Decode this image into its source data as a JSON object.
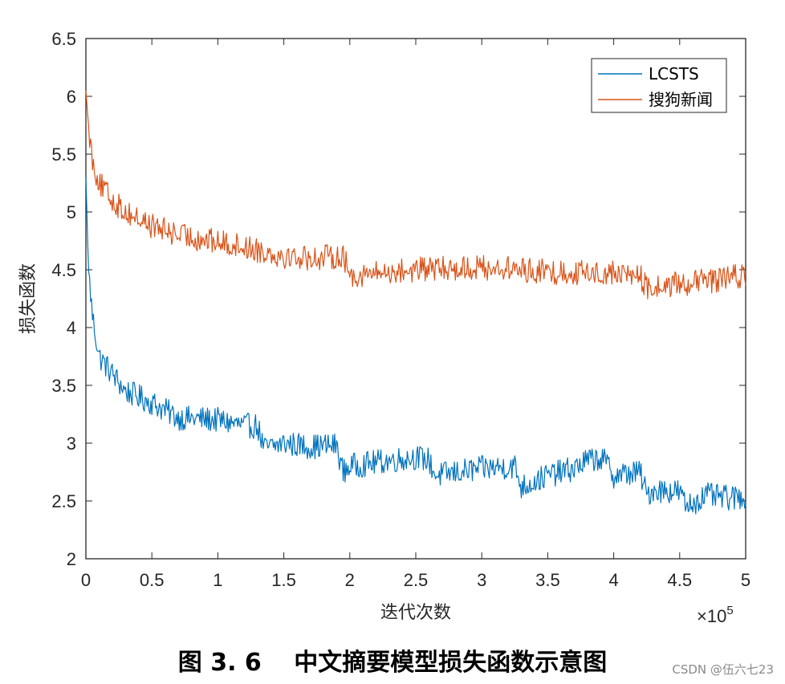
{
  "chart_data": {
    "type": "line",
    "xlabel": "迭代次数",
    "ylabel": "损失函数",
    "x_exponent_label": "×10",
    "x_exponent_power": "5",
    "xlim": [
      0,
      5
    ],
    "ylim": [
      2,
      6.5
    ],
    "xticks": [
      "0",
      "0.5",
      "1",
      "1.5",
      "2",
      "2.5",
      "3",
      "3.5",
      "4",
      "4.5",
      "5"
    ],
    "yticks": [
      "2",
      "2.5",
      "3",
      "3.5",
      "4",
      "4.5",
      "5",
      "5.5",
      "6",
      "6.5"
    ],
    "legend_position": "top-right",
    "grid": false,
    "series": [
      {
        "name": "LCSTS",
        "color": "#0072BD",
        "x": [
          0,
          0.02,
          0.05,
          0.1,
          0.2,
          0.3,
          0.5,
          0.7,
          1.0,
          1.2,
          1.3,
          1.35,
          1.5,
          1.7,
          1.9,
          1.95,
          2.0,
          2.3,
          2.5,
          2.6,
          2.65,
          3.0,
          3.25,
          3.3,
          3.5,
          3.7,
          3.8,
          3.9,
          3.95,
          4.0,
          4.2,
          4.25,
          4.3,
          4.5,
          4.55,
          4.7,
          4.9,
          5.0
        ],
        "y": [
          5.3,
          4.5,
          4.1,
          3.75,
          3.6,
          3.45,
          3.35,
          3.22,
          3.2,
          3.15,
          3.15,
          2.95,
          3.0,
          2.97,
          2.98,
          2.75,
          2.8,
          2.85,
          2.88,
          2.85,
          2.72,
          2.78,
          2.8,
          2.62,
          2.72,
          2.78,
          2.85,
          2.87,
          2.82,
          2.72,
          2.75,
          2.55,
          2.6,
          2.58,
          2.45,
          2.55,
          2.52,
          2.55
        ]
      },
      {
        "name": "搜狗新闻",
        "color": "#D95319",
        "x": [
          0,
          0.02,
          0.05,
          0.1,
          0.2,
          0.3,
          0.5,
          0.7,
          1.0,
          1.2,
          1.5,
          1.7,
          1.95,
          2.0,
          2.3,
          2.5,
          3.0,
          3.3,
          3.5,
          4.0,
          4.2,
          4.25,
          4.5,
          4.7,
          5.0
        ],
        "y": [
          6.05,
          5.75,
          5.45,
          5.25,
          5.1,
          5.0,
          4.88,
          4.8,
          4.74,
          4.7,
          4.62,
          4.6,
          4.62,
          4.45,
          4.48,
          4.5,
          4.52,
          4.5,
          4.48,
          4.47,
          4.45,
          4.33,
          4.38,
          4.4,
          4.45
        ]
      }
    ]
  },
  "caption": "图 3. 6　 中文摘要模型损失函数示意图",
  "watermark": "CSDN @伍六七23"
}
